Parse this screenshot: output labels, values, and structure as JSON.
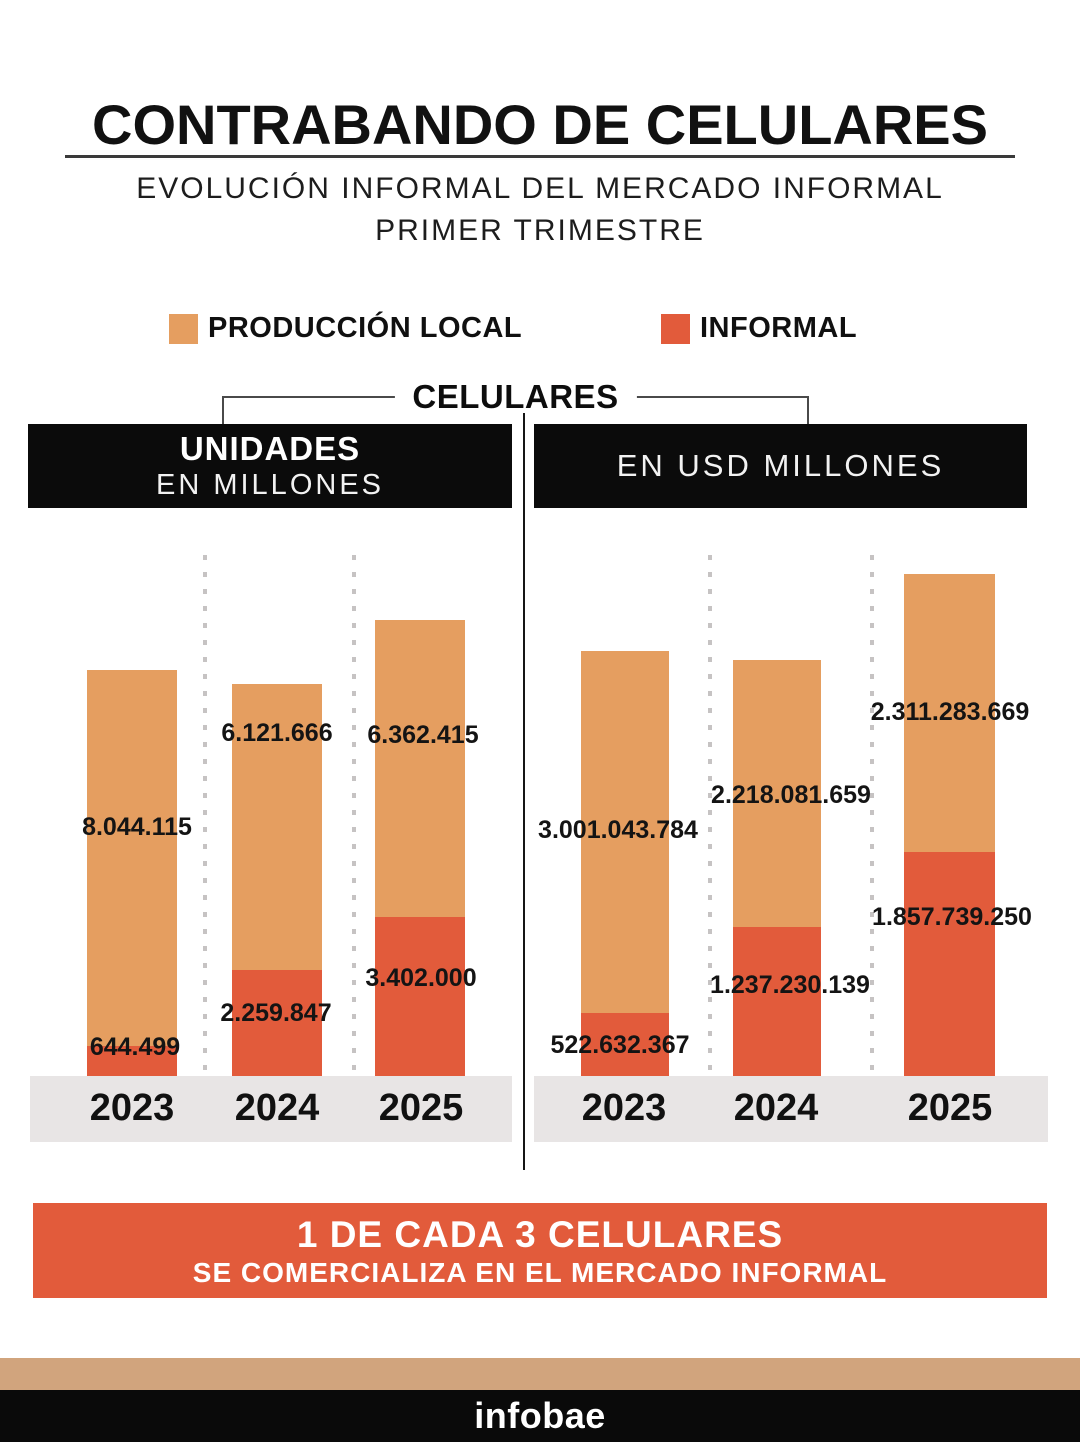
{
  "header": {
    "title": "CONTRABANDO DE CELULARES",
    "subtitle_line1": "EVOLUCIÓN INFORMAL DEL MERCADO INFORMAL",
    "subtitle_line2": "PRIMER TRIMESTRE"
  },
  "legend": {
    "items": [
      {
        "id": "produccion-local",
        "label": "PRODUCCIÓN LOCAL",
        "color": "#E59E60"
      },
      {
        "id": "informal",
        "label": "INFORMAL",
        "color": "#E25B3B"
      }
    ]
  },
  "group_label": "CELULARES",
  "panel_headers": {
    "left_line1": "UNIDADES",
    "left_line2": "EN MILLONES",
    "right": "EN USD MILLONES"
  },
  "chart_data": [
    {
      "type": "bar",
      "stacked": true,
      "title": "CELULARES — UNIDADES EN MILLONES",
      "categories": [
        "2023",
        "2024",
        "2025"
      ],
      "series": [
        {
          "name": "PRODUCCIÓN LOCAL",
          "color": "#E59E60",
          "values": [
            8044115,
            6121666,
            6362415
          ],
          "labels": [
            "8.044.115",
            "6.121.666",
            "6.362.415"
          ]
        },
        {
          "name": "INFORMAL",
          "color": "#E25B3B",
          "values": [
            644499,
            2259847,
            3402000
          ],
          "labels": [
            "644.499",
            "2.259.847",
            "3.402.000"
          ]
        }
      ],
      "legend_position": "top",
      "grid": "dotted vertical separators between years"
    },
    {
      "type": "bar",
      "stacked": true,
      "title": "CELULARES — EN USD MILLONES",
      "categories": [
        "2023",
        "2024",
        "2025"
      ],
      "series": [
        {
          "name": "PRODUCCIÓN LOCAL",
          "color": "#E59E60",
          "values": [
            3001043784,
            2218081659,
            2311283669
          ],
          "labels": [
            "3.001.043.784",
            "2.218.081.659",
            "2.311.283.669"
          ]
        },
        {
          "name": "INFORMAL",
          "color": "#E25B3B",
          "values": [
            522632367,
            1237230139,
            1857739250
          ],
          "labels": [
            "522.632.367",
            "1.237.230.139",
            "1.857.739.250"
          ]
        }
      ],
      "legend_position": "top",
      "grid": "dotted vertical separators between years"
    }
  ],
  "banner": {
    "line1": "1 DE CADA 3 CELULARES",
    "line2": "SE COMERCIALIZA EN EL MERCADO INFORMAL",
    "background": "#E25B3B"
  },
  "footer": {
    "brand": "infobae",
    "background": "#0A0A0A",
    "band_color": "#D1A47D"
  },
  "colors": {
    "produccion_local": "#E59E60",
    "informal": "#E25B3B",
    "panel_header_bg": "#0B0B0B",
    "axis_band": "#E8E5E5",
    "dotted_line": "#C6C3C3",
    "text": "#141414"
  }
}
